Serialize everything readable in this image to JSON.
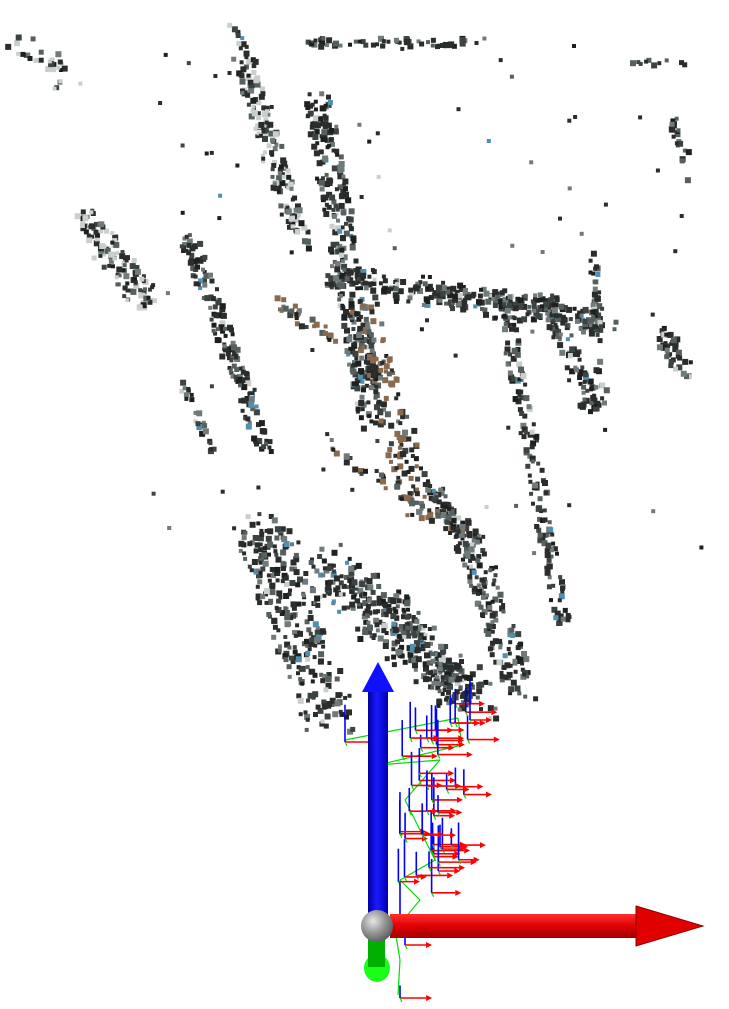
{
  "viewer": {
    "background": "#ffffff",
    "content": "point-cloud"
  },
  "colors": {
    "point_dark": "#2b2d2c",
    "point_mid": "#55605f",
    "point_light": "#c9cfcf",
    "point_brown": "#8a6a4e",
    "point_blue": "#4f8fb0",
    "axis_x": "#ff0000",
    "axis_y": "#00cc00",
    "axis_z": "#0000ff",
    "origin_sphere": "#9a9a9a",
    "trajectory": "#00dd00"
  },
  "gizmo": {
    "axes": [
      "x-axis",
      "y-axis",
      "z-axis"
    ],
    "origin": "origin-sphere"
  }
}
